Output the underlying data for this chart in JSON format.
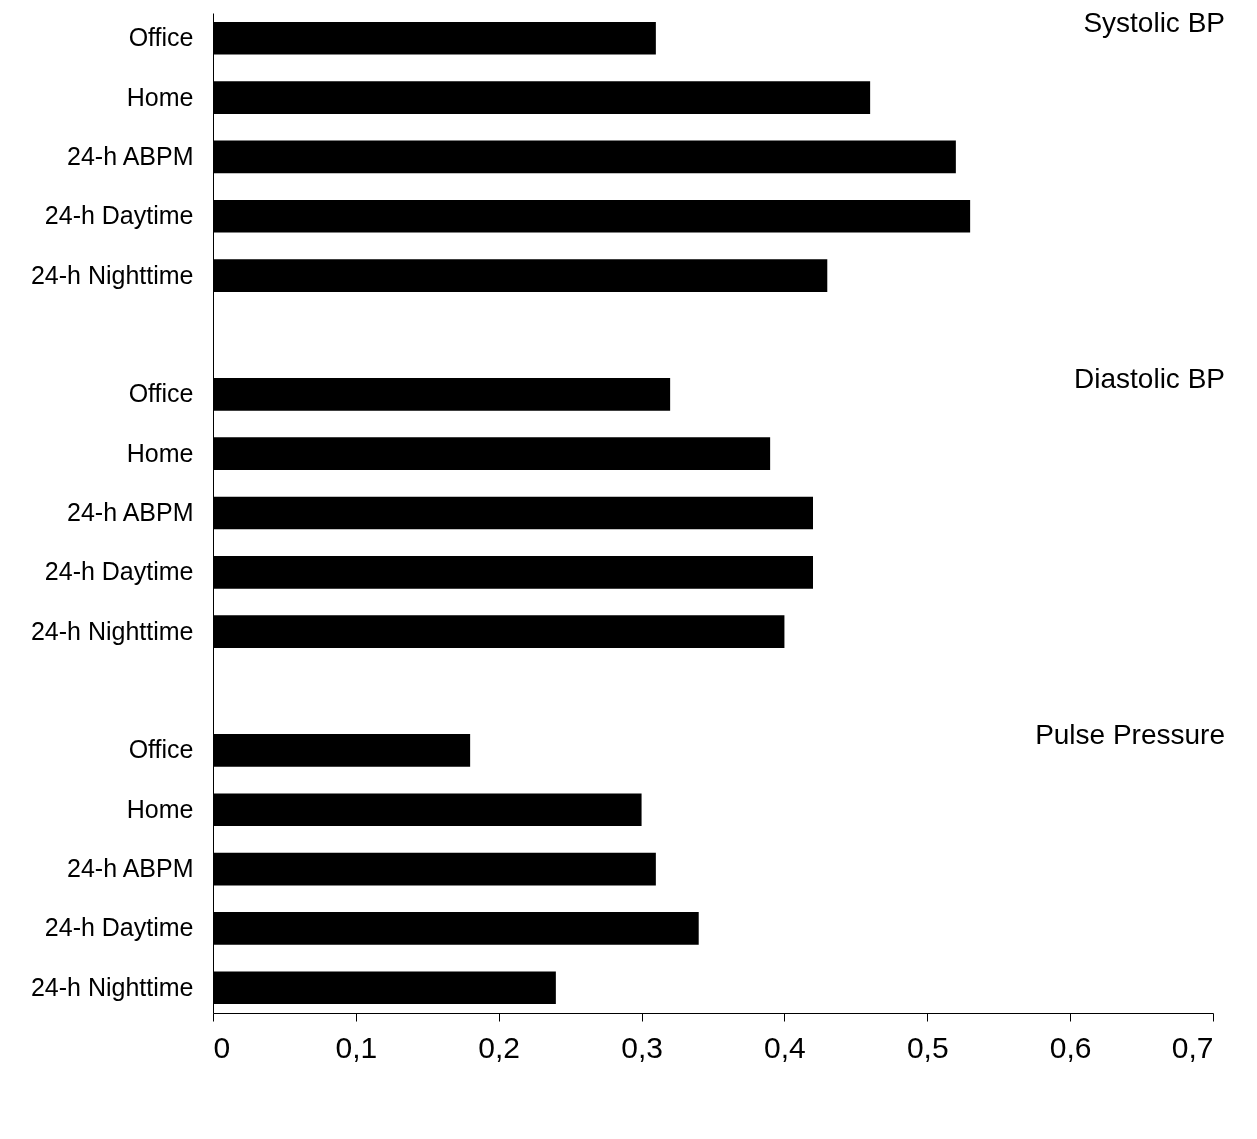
{
  "chart_data": {
    "type": "bar",
    "orientation": "horizontal",
    "categories": [
      "Office",
      "Home",
      "24-h ABPM",
      "24-h Daytime",
      "24-h Nighttime",
      null,
      "Office",
      "Home",
      "24-h ABPM",
      "24-h Daytime",
      "24-h Nighttime",
      null,
      "Office",
      "Home",
      "24-h ABPM",
      "24-h Daytime",
      "24-h Nighttime"
    ],
    "values": [
      0.31,
      0.46,
      0.52,
      0.53,
      0.43,
      null,
      0.32,
      0.39,
      0.42,
      0.42,
      0.4,
      null,
      0.18,
      0.3,
      0.31,
      0.34,
      0.24
    ],
    "color": "#000000",
    "xlim": [
      0,
      0.7
    ],
    "xticks": [
      0,
      {
        "value": 0.1,
        "label": "0,1"
      },
      {
        "value": 0.2,
        "label": "0,2"
      },
      {
        "value": 0.3,
        "label": "0,3"
      },
      {
        "value": 0.4,
        "label": "0,4"
      },
      {
        "value": 0.5,
        "label": "0,5"
      },
      {
        "value": 0.6,
        "label": "0,6"
      },
      {
        "value": 0.7,
        "label": "0,7"
      }
    ],
    "annotations": [
      "Systolic BP",
      "Diastolic BP",
      "Pulse Pressure"
    ],
    "grid": false
  }
}
